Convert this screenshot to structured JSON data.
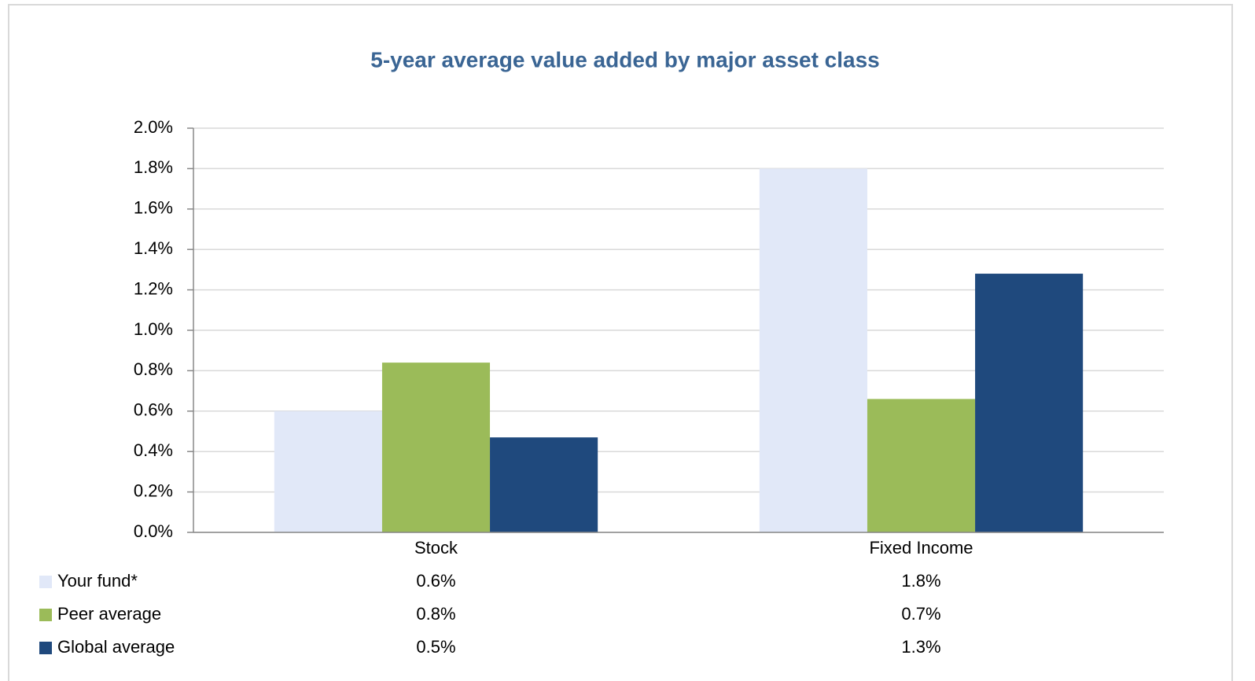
{
  "chart_data": {
    "type": "bar",
    "title": "5-year average value added by major asset class",
    "categories": [
      "Stock",
      "Fixed Income"
    ],
    "series": [
      {
        "name": "Your fund*",
        "color": "#e1e8f8",
        "values": [
          0.6,
          1.8
        ],
        "value_labels": [
          "0.6%",
          "1.8%"
        ]
      },
      {
        "name": "Peer average",
        "color": "#9bbb59",
        "values": [
          0.84,
          0.66
        ],
        "value_labels": [
          "0.8%",
          "0.7%"
        ]
      },
      {
        "name": "Global average",
        "color": "#1f497d",
        "values": [
          0.47,
          1.28
        ],
        "value_labels": [
          "0.5%",
          "1.3%"
        ]
      }
    ],
    "ylim": [
      0,
      2
    ],
    "yticks": [
      {
        "value": 0,
        "label": "0.0%"
      },
      {
        "value": 0.2,
        "label": "0.2%"
      },
      {
        "value": 0.4,
        "label": "0.4%"
      },
      {
        "value": 0.6,
        "label": "0.6%"
      },
      {
        "value": 0.8,
        "label": "0.8%"
      },
      {
        "value": 1,
        "label": "1.0%"
      },
      {
        "value": 1.2,
        "label": "1.2%"
      },
      {
        "value": 1.4,
        "label": "1.4%"
      },
      {
        "value": 1.6,
        "label": "1.6%"
      },
      {
        "value": 1.8,
        "label": "1.8%"
      },
      {
        "value": 2,
        "label": "2.0%"
      }
    ],
    "grid": true
  }
}
